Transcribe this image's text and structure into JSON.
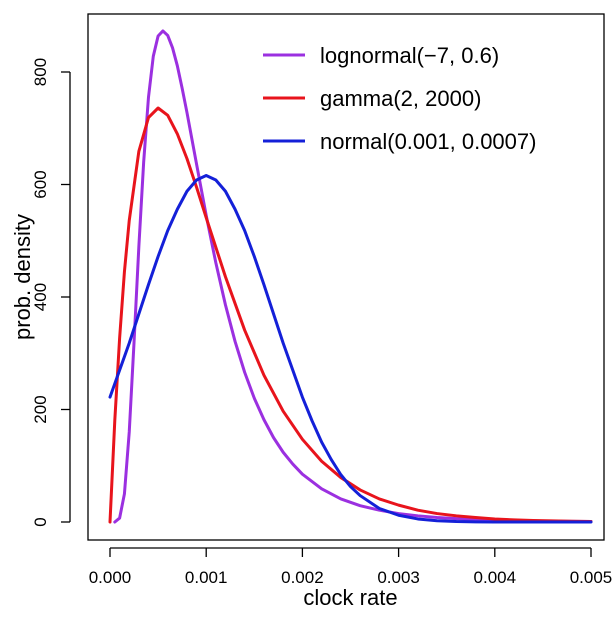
{
  "chart_data": {
    "type": "line",
    "title": "",
    "xlabel": "clock rate",
    "ylabel": "prob. density",
    "xlim": [
      0,
      0.005
    ],
    "ylim": [
      0,
      870
    ],
    "xticks": [
      0.0,
      0.001,
      0.002,
      0.003,
      0.004,
      0.005
    ],
    "xtick_labels": [
      "0.000",
      "0.001",
      "0.002",
      "0.003",
      "0.004",
      "0.005"
    ],
    "yticks": [
      0,
      200,
      400,
      600,
      800
    ],
    "ytick_labels": [
      "0",
      "200",
      "400",
      "600",
      "800"
    ],
    "grid": false,
    "legend": {
      "position": "top-right",
      "border": false
    },
    "series": [
      {
        "name": "lognormal(−7, 0.6)",
        "color": "#9b30e0",
        "x": [
          5e-05,
          0.0001,
          0.00015,
          0.0002,
          0.00025,
          0.0003,
          0.00035,
          0.0004,
          0.00045,
          0.0005,
          0.00055,
          0.0006,
          0.00065,
          0.0007,
          0.00075,
          0.0008,
          0.0009,
          0.001,
          0.0011,
          0.0012,
          0.0013,
          0.0014,
          0.0015,
          0.0016,
          0.0017,
          0.0018,
          0.0019,
          0.002,
          0.0022,
          0.0024,
          0.0026,
          0.0028,
          0.003,
          0.0032,
          0.0034,
          0.0036,
          0.0038,
          0.004,
          0.0042,
          0.0044,
          0.0046,
          0.0048,
          0.005
        ],
        "y": [
          0,
          7,
          50,
          160,
          320,
          490,
          640,
          755,
          828,
          864,
          873,
          865,
          843,
          811,
          771,
          728,
          636,
          545,
          461,
          386,
          321,
          266,
          220,
          182,
          150,
          124,
          103,
          85,
          59,
          41,
          29,
          21,
          15,
          11,
          8,
          6,
          4.4,
          3.3,
          2.5,
          1.9,
          1.4,
          1.1,
          0.8
        ]
      },
      {
        "name": "gamma(2, 2000)",
        "color": "#e8141c",
        "x": [
          0.0,
          5e-05,
          0.0001,
          0.00015,
          0.0002,
          0.0003,
          0.0004,
          0.0005,
          0.0006,
          0.0007,
          0.0008,
          0.0009,
          0.001,
          0.0012,
          0.0014,
          0.0016,
          0.0018,
          0.002,
          0.0022,
          0.0024,
          0.0026,
          0.0028,
          0.003,
          0.0032,
          0.0034,
          0.0036,
          0.0038,
          0.004,
          0.0042,
          0.0044,
          0.0046,
          0.0048,
          0.005
        ],
        "y": [
          0,
          181,
          327,
          445,
          536,
          659,
          719,
          736,
          723,
          690,
          646,
          595,
          541,
          436,
          341,
          261,
          197,
          147,
          108,
          79,
          57,
          41,
          30,
          21,
          15,
          11,
          8,
          5.4,
          3.8,
          2.7,
          1.9,
          1.3,
          0.9
        ]
      },
      {
        "name": "normal(0.001, 0.0007)",
        "color": "#1420d8",
        "x": [
          0.0,
          0.0001,
          0.0002,
          0.0003,
          0.0004,
          0.0005,
          0.0006,
          0.0007,
          0.0008,
          0.0009,
          0.001,
          0.0011,
          0.0012,
          0.0013,
          0.0014,
          0.0015,
          0.0016,
          0.0017,
          0.0018,
          0.0019,
          0.002,
          0.0021,
          0.0022,
          0.0023,
          0.0024,
          0.0025,
          0.0026,
          0.0028,
          0.003,
          0.0032,
          0.0034,
          0.0036,
          0.0038,
          0.004,
          0.0045,
          0.005
        ],
        "y": [
          222,
          270,
          318,
          370,
          422,
          472,
          518,
          556,
          588,
          608,
          616,
          608,
          588,
          556,
          518,
          472,
          422,
          370,
          318,
          270,
          222,
          180,
          142,
          111,
          84,
          63,
          47,
          24,
          12,
          5.4,
          2.3,
          0.9,
          0.3,
          0.1,
          0,
          0
        ]
      }
    ]
  }
}
